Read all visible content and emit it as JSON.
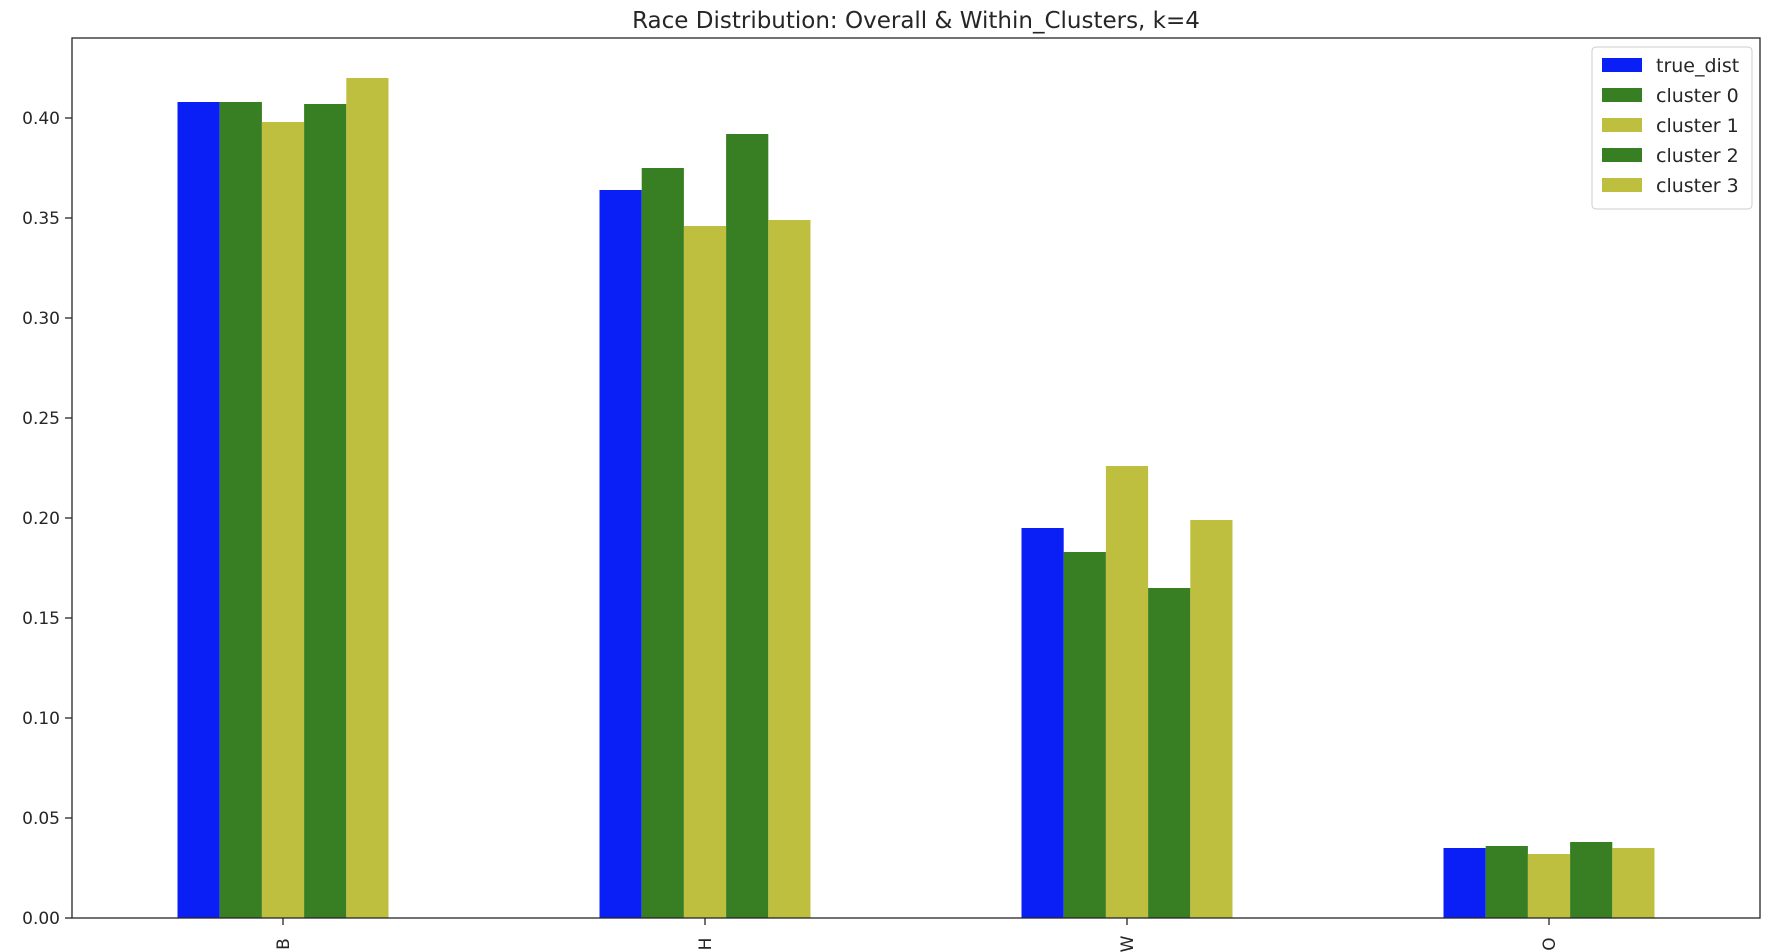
{
  "chart_data": {
    "type": "bar",
    "title": "Race Distribution: Overall & Within_Clusters, k=4",
    "xlabel": "",
    "ylabel": "",
    "categories": [
      "B",
      "H",
      "W",
      "O"
    ],
    "series": [
      {
        "name": "true_dist",
        "color": "#0a1ff5",
        "values": [
          0.408,
          0.364,
          0.195,
          0.035
        ]
      },
      {
        "name": "cluster 0",
        "color": "#387e22",
        "values": [
          0.408,
          0.375,
          0.183,
          0.036
        ]
      },
      {
        "name": "cluster 1",
        "color": "#bfbf3f",
        "values": [
          0.398,
          0.346,
          0.226,
          0.032
        ]
      },
      {
        "name": "cluster 2",
        "color": "#387e22",
        "values": [
          0.407,
          0.392,
          0.165,
          0.038
        ]
      },
      {
        "name": "cluster 3",
        "color": "#bfbf3f",
        "values": [
          0.42,
          0.349,
          0.199,
          0.035
        ]
      }
    ],
    "ylim": [
      0,
      0.44
    ],
    "yticks": [
      "0.00",
      "0.05",
      "0.10",
      "0.15",
      "0.20",
      "0.25",
      "0.30",
      "0.35",
      "0.40"
    ],
    "grid": false,
    "legend_position": "top-right"
  }
}
